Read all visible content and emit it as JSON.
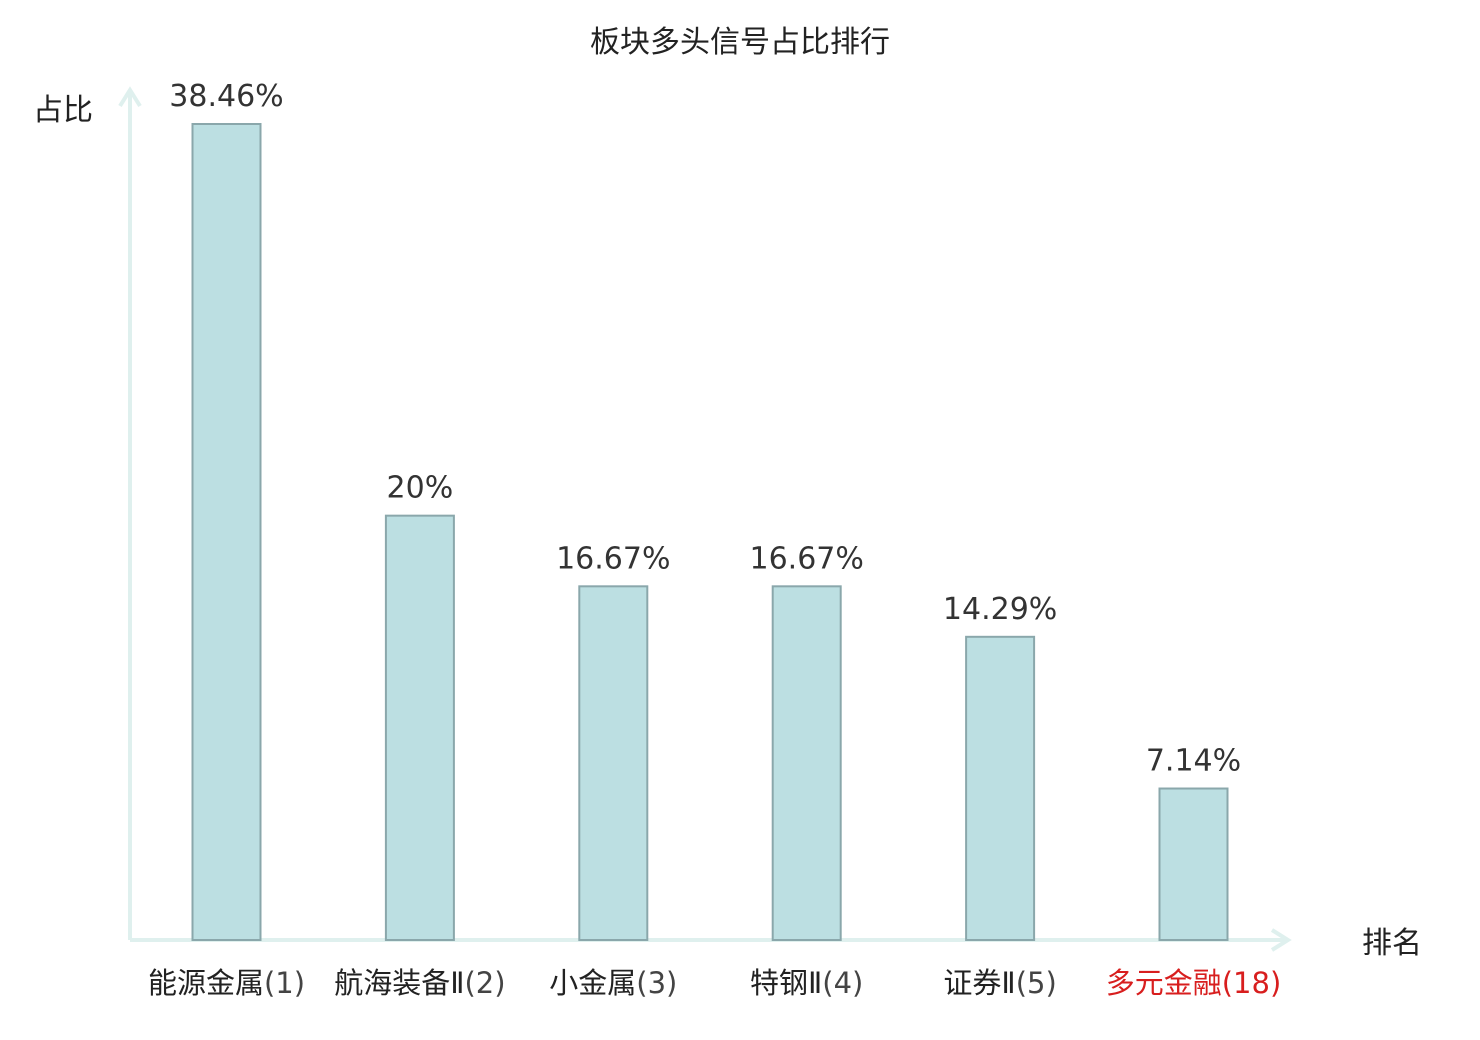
{
  "chart_data": {
    "type": "bar",
    "title": "板块多头信号占比排行",
    "xlabel": "排名",
    "ylabel": "占比",
    "categories": [
      {
        "name": "能源金属",
        "rank": "(1)",
        "highlight": false
      },
      {
        "name": "航海装备Ⅱ",
        "rank": "(2)",
        "highlight": false
      },
      {
        "name": "小金属",
        "rank": "(3)",
        "highlight": false
      },
      {
        "name": "特钢Ⅱ",
        "rank": "(4)",
        "highlight": false
      },
      {
        "name": "证券Ⅱ",
        "rank": "(5)",
        "highlight": false
      },
      {
        "name": "多元金融",
        "rank": "(18)",
        "highlight": true
      }
    ],
    "values": [
      38.46,
      20,
      16.67,
      16.67,
      14.29,
      7.14
    ],
    "value_labels": [
      "38.46%",
      "20%",
      "16.67%",
      "16.67%",
      "14.29%",
      "7.14%"
    ],
    "ylim": [
      0,
      38.46
    ],
    "grid": false,
    "legend": "none",
    "colors": {
      "bar_fill": "#bcdfe2",
      "bar_stroke": "#8aa7ab",
      "axis": "#dff0ee",
      "highlight_label": "#d81e1e"
    }
  }
}
